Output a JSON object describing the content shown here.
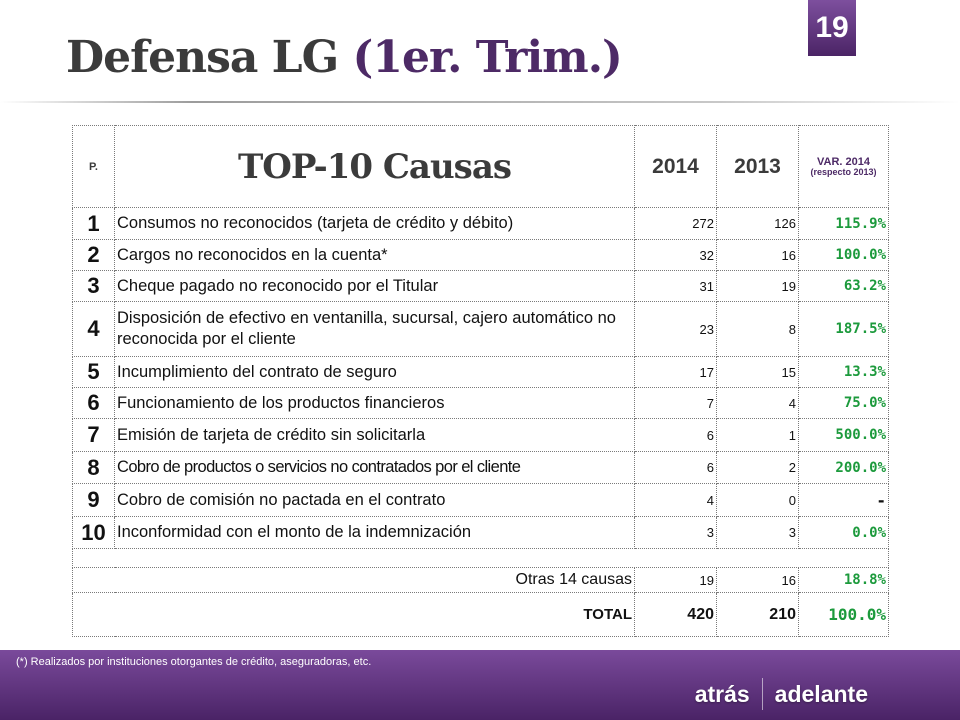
{
  "slide": {
    "title_main": "Defensa LG",
    "title_paren": "(1er. Trim.)",
    "page_number": "19"
  },
  "table": {
    "headers": {
      "p": "P.",
      "title": "TOP-10 Causas",
      "year_current": "2014",
      "year_previous": "2013",
      "var_line1": "VAR. 2014",
      "var_line2": "(respecto 2013)"
    },
    "rows": [
      {
        "rank": "1",
        "cause": "Consumos no reconocidos (tarjeta de crédito y débito)",
        "v2014": "272",
        "v2013": "126",
        "var": "115.9%"
      },
      {
        "rank": "2",
        "cause": "Cargos no reconocidos en la cuenta*",
        "v2014": "32",
        "v2013": "16",
        "var": "100.0%"
      },
      {
        "rank": "3",
        "cause": "Cheque pagado no reconocido por el Titular",
        "v2014": "31",
        "v2013": "19",
        "var": "63.2%"
      },
      {
        "rank": "4",
        "cause": "Disposición de efectivo en ventanilla, sucursal, cajero automático no reconocida por el cliente",
        "v2014": "23",
        "v2013": "8",
        "var": "187.5%"
      },
      {
        "rank": "5",
        "cause": "Incumplimiento del contrato de seguro",
        "v2014": "17",
        "v2013": "15",
        "var": "13.3%"
      },
      {
        "rank": "6",
        "cause": "Funcionamiento de los productos financieros",
        "v2014": "7",
        "v2013": "4",
        "var": "75.0%"
      },
      {
        "rank": "7",
        "cause": "Emisión de tarjeta de crédito sin solicitarla",
        "v2014": "6",
        "v2013": "1",
        "var": "500.0%"
      },
      {
        "rank": "8",
        "cause": "Cobro de productos o servicios no contratados por el cliente",
        "v2014": "6",
        "v2013": "2",
        "var": "200.0%"
      },
      {
        "rank": "9",
        "cause": "Cobro de comisión no pactada en el contrato",
        "v2014": "4",
        "v2013": "0",
        "var": "-"
      },
      {
        "rank": "10",
        "cause": "Inconformidad con el monto de la indemnización",
        "v2014": "3",
        "v2013": "3",
        "var": "0.0%"
      }
    ],
    "other": {
      "label": "Otras 14 causas",
      "v2014": "19",
      "v2013": "16",
      "var": "18.8%"
    },
    "total": {
      "label": "TOTAL",
      "v2014": "420",
      "v2013": "210",
      "var": "100.0%"
    }
  },
  "footer": {
    "footnote": "(*)  Realizados por  instituciones otorgantes de crédito, aseguradoras, etc.",
    "nav_back": "atrás",
    "nav_next": "adelante"
  },
  "colors": {
    "accent_purple": "#4b2466",
    "positive_green": "#1c9a3c"
  }
}
